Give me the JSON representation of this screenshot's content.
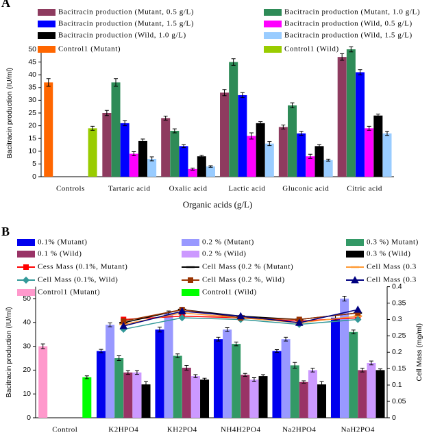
{
  "chart_data": [
    {
      "type": "bar",
      "panel": "A",
      "ylabel": "Bacitracin production (IU/ml)",
      "xlabel": "Organic acids (g/L)",
      "categories": [
        "Controls",
        "Tartaric acid",
        "Oxalic acid",
        "Lactic acid",
        "Gluconic acid",
        "Citric acid"
      ],
      "ylim": [
        0,
        50
      ],
      "yticks": [
        0,
        5,
        10,
        15,
        20,
        25,
        30,
        35,
        40,
        45,
        50
      ],
      "series": [
        {
          "name": "Bacitracin production (Mutant, 0.5 g/L)",
          "color": "#8e3b5f",
          "values": [
            null,
            25,
            23,
            33,
            19.5,
            47
          ],
          "errors": [
            null,
            1,
            0.8,
            1.2,
            0.8,
            1.3
          ]
        },
        {
          "name": "Bacitracin production (Mutant, 1.0 g/L)",
          "color": "#2e8b57",
          "values": [
            null,
            37,
            18,
            45,
            28,
            50
          ],
          "errors": [
            null,
            1.5,
            0.8,
            1.3,
            1,
            1
          ]
        },
        {
          "name": "Bacitracin production (Mutant, 1.5 g/L)",
          "color": "#0000ff",
          "values": [
            null,
            21,
            12,
            32,
            17,
            41
          ],
          "errors": [
            null,
            1,
            0.6,
            1,
            0.8,
            1
          ]
        },
        {
          "name": "Bacitracin production (Wild, 0.5 g/L)",
          "color": "#ff00ff",
          "values": [
            null,
            9,
            3,
            16,
            8,
            19
          ],
          "errors": [
            null,
            0.8,
            0.4,
            1.2,
            0.8,
            0.8
          ]
        },
        {
          "name": "Bacitracin production (Wild, 1.0 g/L)",
          "color": "#000000",
          "values": [
            null,
            14,
            8,
            21,
            12,
            24
          ],
          "errors": [
            null,
            0.8,
            0.4,
            0.6,
            0.6,
            0.6
          ]
        },
        {
          "name": "Bacitracin production (Wild, 1.5 g/L)",
          "color": "#99ccff",
          "values": [
            null,
            7,
            4,
            13,
            6.5,
            17
          ],
          "errors": [
            null,
            0.8,
            0.3,
            0.8,
            0.4,
            0.8
          ]
        },
        {
          "name": "Control1 (Mutant)",
          "color": "#ff6600",
          "values": [
            37,
            null,
            null,
            null,
            null,
            null
          ],
          "errors": [
            1.5,
            null,
            null,
            null,
            null,
            null
          ]
        },
        {
          "name": "Control1 (Wild)",
          "color": "#99cc00",
          "values": [
            19,
            null,
            null,
            null,
            null,
            null
          ],
          "errors": [
            0.8,
            null,
            null,
            null,
            null,
            null
          ]
        }
      ]
    },
    {
      "type": "bar",
      "panel": "B",
      "ylabel": "Bacitracin production (IU/ml)",
      "y2label": "Cell Mass (mg/ml)",
      "categories": [
        "Control",
        "K2HPO4",
        "KH2PO4",
        "NH4H2PO4",
        "Na2HPO4",
        "NaH2PO4"
      ],
      "ylim": [
        0,
        55
      ],
      "yticks": [
        0,
        10,
        20,
        30,
        40,
        50
      ],
      "y2lim": [
        0,
        0.4
      ],
      "y2ticks": [
        0,
        0.05,
        0.1,
        0.15,
        0.2,
        0.25,
        0.3,
        0.35,
        0.4
      ],
      "series": [
        {
          "name": "0.1% (Mutant)",
          "color": "#0000ee",
          "values": [
            null,
            28,
            37,
            33,
            28,
            42
          ],
          "errors": [
            null,
            0.7,
            1,
            0.8,
            0.6,
            1
          ]
        },
        {
          "name": "0.2 % (Mutant)",
          "color": "#9999ff",
          "values": [
            null,
            39,
            44,
            37,
            33,
            50
          ],
          "errors": [
            null,
            0.8,
            0.8,
            0.8,
            0.8,
            1
          ]
        },
        {
          "name": "0.3 %) Mutant)",
          "color": "#339966",
          "values": [
            null,
            25,
            26,
            31,
            22,
            36
          ],
          "errors": [
            null,
            1,
            0.8,
            0.8,
            1.2,
            0.8
          ]
        },
        {
          "name": "0.1 % (Wild)",
          "color": "#993366",
          "values": [
            null,
            19,
            21,
            18,
            15,
            20
          ],
          "errors": [
            null,
            0.8,
            1,
            0.6,
            0.5,
            0.8
          ]
        },
        {
          "name": "0.2 % (Wild)",
          "color": "#cc99ff",
          "values": [
            null,
            19,
            17.5,
            16,
            20,
            23
          ],
          "errors": [
            null,
            0.8,
            0.6,
            0.8,
            0.8,
            0.8
          ]
        },
        {
          "name": "0.3 % (Wild)",
          "color": "#000000",
          "values": [
            null,
            14,
            16,
            17.5,
            14,
            20
          ],
          "errors": [
            null,
            1.2,
            0.6,
            0.6,
            1.2,
            0.5
          ]
        },
        {
          "name": "Cess Mass (0.1%, Mutant)",
          "color": "#ff0000",
          "axis": "y2",
          "marker": "square",
          "values": [
            null,
            0.3,
            0.31,
            0.305,
            0.295,
            0.305
          ]
        },
        {
          "name": "Cell Mass (0.2 % (Mutant)",
          "color": "#000000",
          "axis": "y2",
          "marker": "dash",
          "values": [
            null,
            0.29,
            0.33,
            0.31,
            0.3,
            0.32
          ]
        },
        {
          "name": "Cell Mass (0.3",
          "color": "#ff9933",
          "axis": "y2",
          "marker": "dash",
          "values": [
            null,
            0.285,
            0.32,
            0.305,
            0.29,
            0.31
          ]
        },
        {
          "name": "Cell Mass (0.1%, Wild)",
          "color": "#339999",
          "axis": "y2",
          "marker": "diamond",
          "values": [
            null,
            0.27,
            0.305,
            0.3,
            0.285,
            0.3
          ]
        },
        {
          "name": "Cell Mass (0.2 %, Wild)",
          "color": "#993300",
          "axis": "y2",
          "marker": "square",
          "values": [
            null,
            0.295,
            0.33,
            0.305,
            0.3,
            0.32
          ]
        },
        {
          "name": "Cell Mass (0.3",
          "color": "#000080",
          "axis": "y2",
          "marker": "triangle",
          "values": [
            null,
            0.28,
            0.325,
            0.31,
            0.29,
            0.33
          ]
        },
        {
          "name": "Control1 (Mutant)",
          "color": "#ff99cc",
          "values": [
            30,
            null,
            null,
            null,
            null,
            null
          ],
          "errors": [
            1,
            null,
            null,
            null,
            null,
            null
          ]
        },
        {
          "name": "Control1 (Wild)",
          "color": "#00ff00",
          "values": [
            17,
            null,
            null,
            null,
            null,
            null
          ],
          "errors": [
            0.6,
            null,
            null,
            null,
            null,
            null
          ]
        }
      ]
    }
  ]
}
